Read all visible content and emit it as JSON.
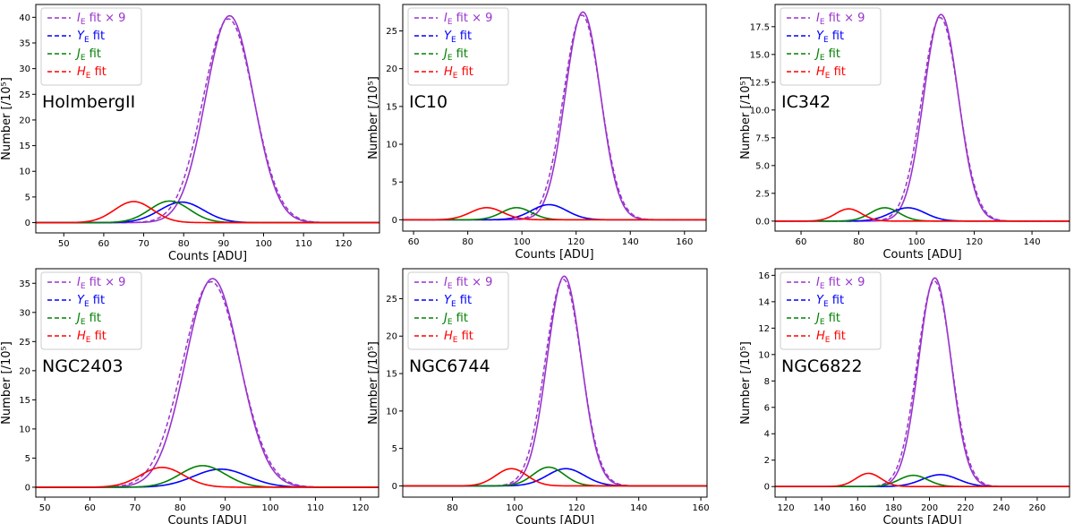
{
  "legend_labels": {
    "ie": {
      "sym": "I",
      "sub": "E",
      "txt": " fit × 9"
    },
    "ye": {
      "sym": "Y",
      "sub": "E",
      "txt": " fit"
    },
    "je": {
      "sym": "J",
      "sub": "E",
      "txt": " fit"
    },
    "he": {
      "sym": "H",
      "sub": "E",
      "txt": " fit"
    }
  },
  "colors": {
    "ie": "#9933cc",
    "ye": "#0000ff",
    "je": "#008000",
    "he": "#ff0000"
  },
  "chart_data": [
    {
      "type": "line",
      "title": "HolmbergII",
      "xlabel": "Counts [ADU]",
      "ylabel": "Number [/10⁵]",
      "xlim": [
        43,
        129
      ],
      "ylim": [
        -2,
        42.5
      ],
      "xticks": [
        50,
        60,
        70,
        80,
        90,
        100,
        110,
        120
      ],
      "yticks": [
        0,
        5,
        10,
        15,
        20,
        25,
        30,
        35,
        40
      ],
      "ytick_labels": [
        "0",
        "5",
        "10",
        "15",
        "20",
        "25",
        "30",
        "35",
        "40"
      ],
      "series": [
        {
          "name": "I_E fit × 9",
          "key": "ie",
          "peak": 40.3,
          "center": 91.5,
          "sigma": 6.0
        },
        {
          "name": "Y_E fit",
          "key": "ye",
          "peak": 4.0,
          "center": 79.5,
          "sigma": 5.5
        },
        {
          "name": "J_E fit",
          "key": "je",
          "peak": 4.2,
          "center": 76.5,
          "sigma": 5.0
        },
        {
          "name": "H_E fit",
          "key": "he",
          "peak": 4.1,
          "center": 67.5,
          "sigma": 4.8
        }
      ]
    },
    {
      "type": "line",
      "title": "IC10",
      "xlabel": "Counts [ADU]",
      "ylabel": "Number [/10⁵]",
      "xlim": [
        56,
        168
      ],
      "ylim": [
        -1.5,
        28.5
      ],
      "xticks": [
        60,
        80,
        100,
        120,
        140,
        160
      ],
      "yticks": [
        0,
        5,
        10,
        15,
        20,
        25
      ],
      "ytick_labels": [
        "0",
        "5",
        "10",
        "15",
        "20",
        "25"
      ],
      "series": [
        {
          "name": "I_E fit × 9",
          "key": "ie",
          "peak": 27.5,
          "center": 122.5,
          "sigma": 6.5
        },
        {
          "name": "Y_E fit",
          "key": "ye",
          "peak": 2.0,
          "center": 110,
          "sigma": 6.5
        },
        {
          "name": "J_E fit",
          "key": "je",
          "peak": 1.6,
          "center": 98,
          "sigma": 5.5
        },
        {
          "name": "H_E fit",
          "key": "he",
          "peak": 1.6,
          "center": 87,
          "sigma": 6.0
        }
      ]
    },
    {
      "type": "line",
      "title": "IC342",
      "xlabel": "Counts [ADU]",
      "ylabel": "Number [/10⁵]",
      "xlim": [
        51,
        153
      ],
      "ylim": [
        -0.9,
        19.5
      ],
      "xticks": [
        60,
        80,
        100,
        120,
        140
      ],
      "yticks": [
        0,
        2.5,
        5,
        7.5,
        10,
        12.5,
        15,
        17.5
      ],
      "ytick_labels": [
        "0.0",
        "2.5",
        "5.0",
        "7.5",
        "10.0",
        "12.5",
        "15.0",
        "17.5"
      ],
      "series": [
        {
          "name": "I_E fit × 9",
          "key": "ie",
          "peak": 18.6,
          "center": 108.5,
          "sigma": 6.0
        },
        {
          "name": "Y_E fit",
          "key": "ye",
          "peak": 1.2,
          "center": 97,
          "sigma": 6.0
        },
        {
          "name": "J_E fit",
          "key": "je",
          "peak": 1.2,
          "center": 89,
          "sigma": 5.0
        },
        {
          "name": "H_E fit",
          "key": "he",
          "peak": 1.1,
          "center": 76.5,
          "sigma": 4.5
        }
      ]
    },
    {
      "type": "line",
      "title": "NGC2403",
      "xlabel": "Counts [ADU]",
      "ylabel": "Number [/10⁵]",
      "xlim": [
        48,
        124
      ],
      "ylim": [
        -1.7,
        37.5
      ],
      "xticks": [
        50,
        60,
        70,
        80,
        90,
        100,
        110,
        120
      ],
      "yticks": [
        0,
        5,
        10,
        15,
        20,
        25,
        30,
        35
      ],
      "ytick_labels": [
        "0",
        "5",
        "10",
        "15",
        "20",
        "25",
        "30",
        "35"
      ],
      "series": [
        {
          "name": "I_E fit × 9",
          "key": "ie",
          "peak": 35.8,
          "center": 87.2,
          "sigma": 6.0
        },
        {
          "name": "Y_E fit",
          "key": "ye",
          "peak": 3.1,
          "center": 89,
          "sigma": 6.0
        },
        {
          "name": "J_E fit",
          "key": "je",
          "peak": 3.7,
          "center": 85,
          "sigma": 5.0
        },
        {
          "name": "H_E fit",
          "key": "he",
          "peak": 3.4,
          "center": 76,
          "sigma": 4.8
        }
      ]
    },
    {
      "type": "line",
      "title": "NGC6744",
      "xlabel": "Counts [ADU]",
      "ylabel": "Number [/10⁵]",
      "xlim": [
        64,
        162
      ],
      "ylim": [
        -1.5,
        29
      ],
      "xticks": [
        80,
        100,
        120,
        140,
        160
      ],
      "yticks": [
        0,
        5,
        10,
        15,
        20,
        25
      ],
      "ytick_labels": [
        "0",
        "5",
        "10",
        "15",
        "20",
        "25"
      ],
      "series": [
        {
          "name": "I_E fit × 9",
          "key": "ie",
          "peak": 28.0,
          "center": 116,
          "sigma": 5.5
        },
        {
          "name": "Y_E fit",
          "key": "ye",
          "peak": 2.3,
          "center": 116.5,
          "sigma": 6.0
        },
        {
          "name": "J_E fit",
          "key": "je",
          "peak": 2.5,
          "center": 111,
          "sigma": 5.0
        },
        {
          "name": "H_E fit",
          "key": "he",
          "peak": 2.3,
          "center": 99,
          "sigma": 5.0
        }
      ]
    },
    {
      "type": "line",
      "title": "NGC6822",
      "xlabel": "Counts [ADU]",
      "ylabel": "Number [/10⁵]",
      "xlim": [
        114,
        278
      ],
      "ylim": [
        -0.8,
        16.5
      ],
      "xticks": [
        120,
        140,
        160,
        180,
        200,
        220,
        240,
        260
      ],
      "yticks": [
        0,
        2,
        4,
        6,
        8,
        10,
        12,
        14,
        16
      ],
      "ytick_labels": [
        "0",
        "2",
        "4",
        "6",
        "8",
        "10",
        "12",
        "14",
        "16"
      ],
      "series": [
        {
          "name": "I_E fit × 9",
          "key": "ie",
          "peak": 15.8,
          "center": 203,
          "sigma": 9.0
        },
        {
          "name": "Y_E fit",
          "key": "ye",
          "peak": 0.9,
          "center": 206,
          "sigma": 10.0
        },
        {
          "name": "J_E fit",
          "key": "je",
          "peak": 0.85,
          "center": 191,
          "sigma": 8.0
        },
        {
          "name": "H_E fit",
          "key": "he",
          "peak": 1.0,
          "center": 166,
          "sigma": 7.0
        }
      ]
    }
  ]
}
